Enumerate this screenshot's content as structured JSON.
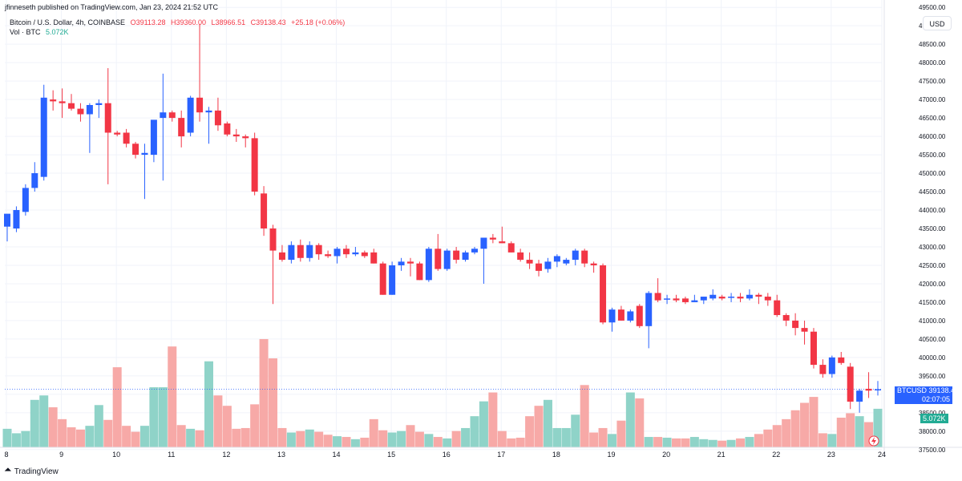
{
  "header": {
    "published": "jfinneseth published on TradingView.com, Jan 23, 2024 21:52 UTC"
  },
  "legend": {
    "symbol": "Bitcoin / U.S. Dollar, 4h, COINBASE",
    "open": "O39113.28",
    "high": "H39360.00",
    "low": "L38966.51",
    "close": "C39138.43",
    "change": "+25.18 (+0.06%)",
    "volume_label": "Vol · BTC",
    "volume_value": "5.072K"
  },
  "currency_button": "USD",
  "price_tag": {
    "symbol": "BTCUSD",
    "price": "39138.43",
    "countdown": "02:07:05"
  },
  "volume_tag": "5.072K",
  "footer": {
    "brand": "TradingView"
  },
  "colors": {
    "up": "#2962ff",
    "down": "#f23645",
    "vol_up": "#8fd3c8",
    "vol_down": "#f7a9a7",
    "grid": "#f0f3fa"
  },
  "chart_data": {
    "type": "candlestick",
    "symbol": "BTCUSD",
    "interval": "4h",
    "ylim": [
      37300,
      49700
    ],
    "y_ticks": [
      37500,
      38000,
      38500,
      39000,
      39500,
      40000,
      40500,
      41000,
      41500,
      42000,
      42500,
      43000,
      43500,
      44000,
      44500,
      45000,
      45500,
      46000,
      46500,
      47000,
      47500,
      48000,
      48500,
      49000,
      49500
    ],
    "x_labels": [
      "8",
      "9",
      "10",
      "11",
      "12",
      "13",
      "14",
      "15",
      "16",
      "17",
      "18",
      "19",
      "20",
      "21",
      "22",
      "23",
      "24"
    ],
    "last_price": 39138.43,
    "candles": [
      {
        "o": 43550,
        "h": 43800,
        "l": 43150,
        "c": 43900
      },
      {
        "o": 43500,
        "h": 44100,
        "l": 43400,
        "c": 44000
      },
      {
        "o": 43950,
        "h": 44700,
        "l": 43850,
        "c": 44600
      },
      {
        "o": 44600,
        "h": 45300,
        "l": 44500,
        "c": 45000
      },
      {
        "o": 44900,
        "h": 47400,
        "l": 44800,
        "c": 47050
      },
      {
        "o": 47000,
        "h": 47250,
        "l": 46700,
        "c": 46950
      },
      {
        "o": 46950,
        "h": 47300,
        "l": 46500,
        "c": 46900
      },
      {
        "o": 46900,
        "h": 47150,
        "l": 46700,
        "c": 46750
      },
      {
        "o": 46750,
        "h": 46900,
        "l": 46400,
        "c": 46600
      },
      {
        "o": 46600,
        "h": 46900,
        "l": 45550,
        "c": 46850
      },
      {
        "o": 46850,
        "h": 47000,
        "l": 46500,
        "c": 46900
      },
      {
        "o": 46900,
        "h": 47850,
        "l": 44700,
        "c": 46100
      },
      {
        "o": 46100,
        "h": 46150,
        "l": 46000,
        "c": 46050
      },
      {
        "o": 46100,
        "h": 46200,
        "l": 45700,
        "c": 45800
      },
      {
        "o": 45800,
        "h": 45850,
        "l": 45400,
        "c": 45500
      },
      {
        "o": 45500,
        "h": 45800,
        "l": 44300,
        "c": 45550
      },
      {
        "o": 45500,
        "h": 46400,
        "l": 45300,
        "c": 46450
      },
      {
        "o": 46500,
        "h": 47700,
        "l": 44800,
        "c": 46650
      },
      {
        "o": 46650,
        "h": 46700,
        "l": 46400,
        "c": 46500
      },
      {
        "o": 46500,
        "h": 46700,
        "l": 45700,
        "c": 46000
      },
      {
        "o": 46100,
        "h": 47100,
        "l": 46000,
        "c": 47050
      },
      {
        "o": 47050,
        "h": 49050,
        "l": 46400,
        "c": 46650
      },
      {
        "o": 46650,
        "h": 46800,
        "l": 45800,
        "c": 46700
      },
      {
        "o": 46700,
        "h": 47050,
        "l": 46150,
        "c": 46300
      },
      {
        "o": 46350,
        "h": 46400,
        "l": 46000,
        "c": 46050
      },
      {
        "o": 46050,
        "h": 46200,
        "l": 45850,
        "c": 46000
      },
      {
        "o": 46000,
        "h": 46050,
        "l": 45700,
        "c": 45950
      },
      {
        "o": 45950,
        "h": 46100,
        "l": 44400,
        "c": 44500
      },
      {
        "o": 44450,
        "h": 44650,
        "l": 43300,
        "c": 43500
      },
      {
        "o": 43500,
        "h": 43600,
        "l": 41450,
        "c": 42900
      },
      {
        "o": 42850,
        "h": 43050,
        "l": 42600,
        "c": 42650
      },
      {
        "o": 42650,
        "h": 43150,
        "l": 42550,
        "c": 43050
      },
      {
        "o": 43050,
        "h": 43200,
        "l": 42600,
        "c": 42700
      },
      {
        "o": 42700,
        "h": 43150,
        "l": 42600,
        "c": 43050
      },
      {
        "o": 43050,
        "h": 43100,
        "l": 42650,
        "c": 42800
      },
      {
        "o": 42800,
        "h": 42900,
        "l": 42700,
        "c": 42750
      },
      {
        "o": 42750,
        "h": 43000,
        "l": 42550,
        "c": 42950
      },
      {
        "o": 42950,
        "h": 43050,
        "l": 42700,
        "c": 42800
      },
      {
        "o": 42800,
        "h": 43000,
        "l": 42750,
        "c": 42850
      },
      {
        "o": 42850,
        "h": 42900,
        "l": 42700,
        "c": 42750
      },
      {
        "o": 42850,
        "h": 42950,
        "l": 42550,
        "c": 42550
      },
      {
        "o": 42550,
        "h": 42600,
        "l": 41700,
        "c": 41700
      },
      {
        "o": 41700,
        "h": 42600,
        "l": 41700,
        "c": 42500
      },
      {
        "o": 42500,
        "h": 42700,
        "l": 42350,
        "c": 42600
      },
      {
        "o": 42600,
        "h": 42700,
        "l": 42200,
        "c": 42550
      },
      {
        "o": 42550,
        "h": 42600,
        "l": 42100,
        "c": 42100
      },
      {
        "o": 42100,
        "h": 43000,
        "l": 42050,
        "c": 42950
      },
      {
        "o": 42950,
        "h": 43350,
        "l": 42350,
        "c": 42400
      },
      {
        "o": 42400,
        "h": 42950,
        "l": 42350,
        "c": 42900
      },
      {
        "o": 42900,
        "h": 43000,
        "l": 42550,
        "c": 42650
      },
      {
        "o": 42650,
        "h": 42900,
        "l": 42600,
        "c": 42850
      },
      {
        "o": 42850,
        "h": 43000,
        "l": 42800,
        "c": 42950
      },
      {
        "o": 42950,
        "h": 43250,
        "l": 42000,
        "c": 43250
      },
      {
        "o": 43250,
        "h": 43350,
        "l": 43100,
        "c": 43200
      },
      {
        "o": 43150,
        "h": 43550,
        "l": 43100,
        "c": 43100
      },
      {
        "o": 43100,
        "h": 43150,
        "l": 42850,
        "c": 42850
      },
      {
        "o": 42850,
        "h": 42950,
        "l": 42600,
        "c": 42650
      },
      {
        "o": 42650,
        "h": 42850,
        "l": 42400,
        "c": 42550
      },
      {
        "o": 42550,
        "h": 42650,
        "l": 42200,
        "c": 42350
      },
      {
        "o": 42400,
        "h": 42700,
        "l": 42300,
        "c": 42600
      },
      {
        "o": 42600,
        "h": 42800,
        "l": 42450,
        "c": 42750
      },
      {
        "o": 42550,
        "h": 42700,
        "l": 42500,
        "c": 42650
      },
      {
        "o": 42650,
        "h": 42950,
        "l": 42500,
        "c": 42900
      },
      {
        "o": 42900,
        "h": 42950,
        "l": 42450,
        "c": 42550
      },
      {
        "o": 42550,
        "h": 42600,
        "l": 42300,
        "c": 42500
      },
      {
        "o": 42500,
        "h": 42550,
        "l": 40900,
        "c": 40950
      },
      {
        "o": 40950,
        "h": 41350,
        "l": 40700,
        "c": 41300
      },
      {
        "o": 41300,
        "h": 41400,
        "l": 41000,
        "c": 41000
      },
      {
        "o": 41000,
        "h": 41300,
        "l": 40950,
        "c": 41250
      },
      {
        "o": 41400,
        "h": 41450,
        "l": 40800,
        "c": 40850
      },
      {
        "o": 40850,
        "h": 41800,
        "l": 40250,
        "c": 41750
      },
      {
        "o": 41750,
        "h": 42150,
        "l": 41500,
        "c": 41550
      },
      {
        "o": 41600,
        "h": 41700,
        "l": 41450,
        "c": 41600
      },
      {
        "o": 41600,
        "h": 41700,
        "l": 41500,
        "c": 41550
      },
      {
        "o": 41600,
        "h": 41650,
        "l": 41450,
        "c": 41500
      },
      {
        "o": 41500,
        "h": 41700,
        "l": 41500,
        "c": 41550
      },
      {
        "o": 41550,
        "h": 41650,
        "l": 41450,
        "c": 41650
      },
      {
        "o": 41600,
        "h": 41850,
        "l": 41550,
        "c": 41700
      },
      {
        "o": 41650,
        "h": 41700,
        "l": 41550,
        "c": 41600
      },
      {
        "o": 41650,
        "h": 41750,
        "l": 41500,
        "c": 41650
      },
      {
        "o": 41650,
        "h": 41750,
        "l": 41500,
        "c": 41600
      },
      {
        "o": 41600,
        "h": 41850,
        "l": 41550,
        "c": 41700
      },
      {
        "o": 41700,
        "h": 41750,
        "l": 41450,
        "c": 41650
      },
      {
        "o": 41650,
        "h": 41750,
        "l": 41400,
        "c": 41550
      },
      {
        "o": 41550,
        "h": 41700,
        "l": 41100,
        "c": 41150
      },
      {
        "o": 41150,
        "h": 41200,
        "l": 40850,
        "c": 41000
      },
      {
        "o": 41000,
        "h": 41200,
        "l": 40600,
        "c": 40800
      },
      {
        "o": 40800,
        "h": 41000,
        "l": 40350,
        "c": 40700
      },
      {
        "o": 40700,
        "h": 40800,
        "l": 39700,
        "c": 39800
      },
      {
        "o": 39800,
        "h": 39950,
        "l": 39450,
        "c": 39550
      },
      {
        "o": 39550,
        "h": 40050,
        "l": 39450,
        "c": 40000
      },
      {
        "o": 40000,
        "h": 40150,
        "l": 39800,
        "c": 39850
      },
      {
        "o": 39750,
        "h": 39850,
        "l": 38600,
        "c": 38800
      },
      {
        "o": 38800,
        "h": 39150,
        "l": 38500,
        "c": 39100
      },
      {
        "o": 39150,
        "h": 39600,
        "l": 38900,
        "c": 39100
      },
      {
        "o": 39113,
        "h": 39360,
        "l": 38966,
        "c": 39138
      }
    ],
    "volume": [
      12.5,
      9.5,
      11,
      32,
      35,
      27,
      19,
      13.5,
      12,
      14.5,
      28.5,
      18.5,
      54,
      14.5,
      10.5,
      14.5,
      40.5,
      40.5,
      68,
      15,
      12.5,
      11.5,
      58,
      35,
      28,
      12.5,
      13,
      29,
      73,
      60,
      13,
      10,
      11,
      12,
      10.5,
      8.5,
      7.5,
      7,
      5.5,
      6.5,
      19,
      11.5,
      10,
      11,
      15,
      10.5,
      9,
      7,
      6,
      11,
      13,
      21,
      31,
      37,
      11,
      6,
      6.5,
      21,
      28,
      32,
      13,
      13,
      22,
      42,
      10,
      13,
      9,
      18,
      37,
      33,
      7,
      7,
      6.5,
      6,
      6,
      7,
      5.5,
      5,
      4.5,
      5,
      6,
      7,
      9,
      12,
      15,
      19,
      25,
      30,
      34,
      9.5,
      9,
      20,
      23,
      21,
      17,
      26
    ]
  }
}
